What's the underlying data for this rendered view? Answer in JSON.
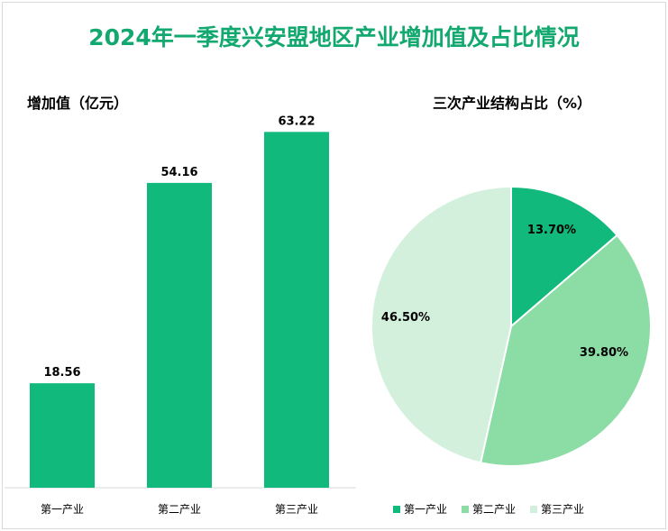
{
  "title": "2024年一季度兴安盟地区产业增加值及占比情况",
  "colors": {
    "bar": "#12b97c",
    "pie": [
      "#12b97c",
      "#8cdca5",
      "#d3f0dc"
    ]
  },
  "chart_data": [
    {
      "type": "bar",
      "title": "增加值（亿元）",
      "categories": [
        "第一产业",
        "第二产业",
        "第三产业"
      ],
      "values": [
        18.56,
        54.16,
        63.22
      ],
      "value_labels": [
        "18.56",
        "54.16",
        "63.22"
      ],
      "ylim": [
        0,
        70
      ],
      "grid": false
    },
    {
      "type": "pie",
      "title": "三次产业结构占比（%）",
      "categories": [
        "第一产业",
        "第二产业",
        "第三产业"
      ],
      "values": [
        13.7,
        39.8,
        46.5
      ],
      "value_labels": [
        "13.70%",
        "39.80%",
        "46.50%"
      ],
      "legend": [
        "第一产业",
        "第二产业",
        "第三产业"
      ],
      "legend_position": "bottom"
    }
  ]
}
